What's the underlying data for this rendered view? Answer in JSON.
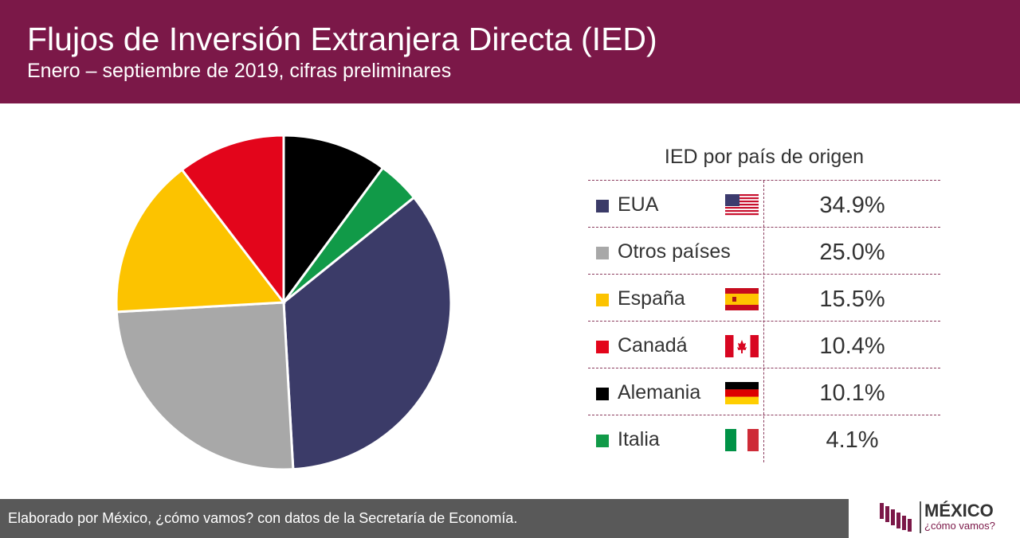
{
  "header": {
    "title": "Flujos de Inversión Extranjera Directa (IED)",
    "subtitle": "Enero – septiembre de 2019, cifras preliminares"
  },
  "chart_data": {
    "type": "pie",
    "title": "Flujos de Inversión Extranjera Directa (IED)",
    "subtitle": "Enero – septiembre de 2019, cifras preliminares",
    "legend_title": "IED por  país de origen",
    "legend_placement": "right",
    "categories": [
      "EUA",
      "Otros países",
      "España",
      "Canadá",
      "Alemania",
      "Italia"
    ],
    "values": [
      34.9,
      25.0,
      15.5,
      10.4,
      10.1,
      4.1
    ],
    "labels": [
      "34.9%",
      "25.0%",
      "15.5%",
      "10.4%",
      "10.1%",
      "4.1%"
    ],
    "colors": [
      "#3b3b68",
      "#a8a8a8",
      "#fcc300",
      "#e3051b",
      "#000000",
      "#119a48"
    ]
  },
  "flags": [
    "us-flag-icon",
    "",
    "spain-flag-icon",
    "canada-flag-icon",
    "germany-flag-icon",
    "italy-flag-icon"
  ],
  "footer": {
    "text": "Elaborado por México, ¿cómo vamos? con datos de la Secretaría de Economía."
  },
  "logo": {
    "main": "MÉXICO",
    "sub": "¿cómo vamos?"
  }
}
